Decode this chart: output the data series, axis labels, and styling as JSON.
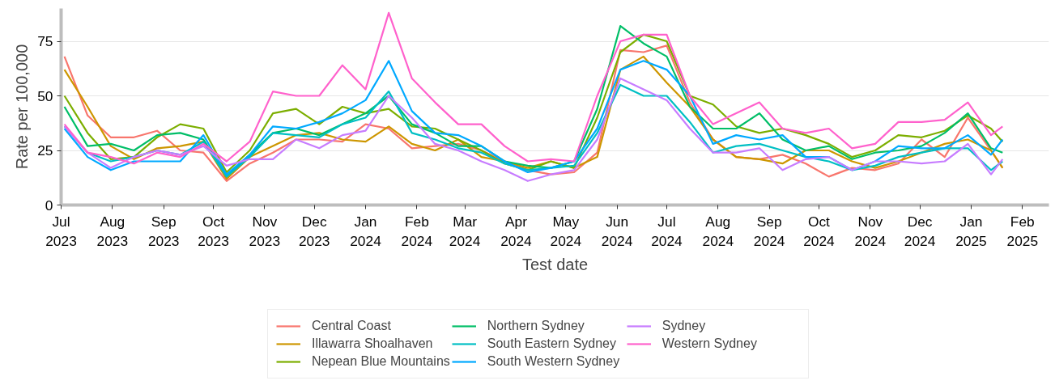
{
  "chart_data": {
    "type": "line",
    "xlabel": "Test date",
    "ylabel": "Rate per 100,000",
    "x": [
      "2023-07-03",
      "2023-07-17",
      "2023-07-31",
      "2023-08-14",
      "2023-08-28",
      "2023-09-11",
      "2023-09-25",
      "2023-10-09",
      "2023-10-23",
      "2023-11-06",
      "2023-11-20",
      "2023-12-04",
      "2023-12-18",
      "2024-01-01",
      "2024-01-15",
      "2024-01-29",
      "2024-02-12",
      "2024-02-26",
      "2024-03-11",
      "2024-03-25",
      "2024-04-08",
      "2024-04-22",
      "2024-05-06",
      "2024-05-20",
      "2024-06-03",
      "2024-06-17",
      "2024-07-01",
      "2024-07-15",
      "2024-07-29",
      "2024-08-12",
      "2024-08-26",
      "2024-09-09",
      "2024-09-23",
      "2024-10-07",
      "2024-10-21",
      "2024-11-04",
      "2024-11-18",
      "2024-12-02",
      "2024-12-16",
      "2024-12-30",
      "2025-01-13",
      "2025-01-20"
    ],
    "series": [
      {
        "name": "Central Coast",
        "color": "#f8766d",
        "values": [
          68,
          41,
          31,
          31,
          34,
          25,
          24,
          11,
          19,
          24,
          30,
          30,
          29,
          37,
          35,
          26,
          27,
          28,
          25,
          20,
          16,
          14,
          15,
          24,
          71,
          70,
          73,
          47,
          30,
          22,
          21,
          23,
          19,
          13,
          17,
          16,
          19,
          30,
          22,
          40,
          25,
          17
        ]
      },
      {
        "name": "Illawarra Shoalhaven",
        "color": "#cd9600",
        "values": [
          62,
          45,
          27,
          21,
          26,
          27,
          29,
          12,
          22,
          27,
          32,
          33,
          30,
          29,
          36,
          28,
          25,
          30,
          22,
          20,
          17,
          20,
          17,
          22,
          62,
          68,
          56,
          45,
          30,
          22,
          21,
          19,
          25,
          25,
          20,
          17,
          20,
          24,
          28,
          30,
          25,
          17
        ]
      },
      {
        "name": "Nepean Blue Mountains",
        "color": "#7cae00",
        "values": [
          50,
          33,
          21,
          22,
          31,
          37,
          35,
          15,
          25,
          42,
          44,
          37,
          45,
          42,
          44,
          36,
          35,
          30,
          25,
          19,
          16,
          20,
          17,
          40,
          70,
          78,
          75,
          50,
          46,
          36,
          33,
          35,
          32,
          28,
          22,
          25,
          32,
          31,
          34,
          41,
          35,
          29
        ]
      },
      {
        "name": "Northern Sydney",
        "color": "#00be67",
        "values": [
          45,
          27,
          28,
          25,
          32,
          33,
          30,
          13,
          23,
          33,
          35,
          32,
          37,
          42,
          50,
          37,
          33,
          27,
          27,
          20,
          18,
          17,
          20,
          44,
          82,
          74,
          68,
          45,
          35,
          35,
          42,
          30,
          25,
          27,
          21,
          24,
          25,
          27,
          33,
          42,
          26,
          24
        ]
      },
      {
        "name": "South Eastern Sydney",
        "color": "#00bfc4",
        "values": [
          36,
          24,
          20,
          22,
          25,
          23,
          29,
          13,
          22,
          33,
          32,
          31,
          37,
          40,
          52,
          33,
          30,
          26,
          24,
          19,
          16,
          17,
          18,
          33,
          55,
          50,
          50,
          38,
          24,
          27,
          28,
          25,
          22,
          20,
          16,
          18,
          22,
          24,
          26,
          26,
          16,
          20
        ]
      },
      {
        "name": "South Western Sydney",
        "color": "#00a9ff",
        "values": [
          35,
          22,
          16,
          20,
          20,
          20,
          32,
          14,
          23,
          36,
          35,
          38,
          42,
          48,
          66,
          43,
          33,
          32,
          27,
          20,
          15,
          17,
          20,
          35,
          62,
          66,
          62,
          50,
          28,
          32,
          30,
          32,
          22,
          22,
          16,
          20,
          27,
          26,
          26,
          32,
          23,
          30
        ]
      },
      {
        "name": "Sydney",
        "color": "#c77cff",
        "values": [
          36,
          24,
          17,
          22,
          25,
          23,
          27,
          18,
          21,
          21,
          30,
          26,
          32,
          34,
          50,
          40,
          28,
          25,
          20,
          16,
          11,
          14,
          16,
          30,
          58,
          53,
          48,
          35,
          24,
          24,
          26,
          16,
          21,
          22,
          16,
          20,
          20,
          19,
          20,
          28,
          14,
          21
        ]
      },
      {
        "name": "Western Sydney",
        "color": "#ff61cc",
        "values": [
          37,
          24,
          22,
          19,
          24,
          22,
          28,
          20,
          29,
          52,
          50,
          50,
          64,
          53,
          88,
          58,
          47,
          37,
          37,
          27,
          20,
          21,
          20,
          50,
          75,
          78,
          78,
          50,
          37,
          42,
          47,
          35,
          33,
          35,
          26,
          28,
          38,
          38,
          39,
          47,
          32,
          36
        ]
      }
    ],
    "xlim": [
      "2023-07-01",
      "2025-02-17"
    ],
    "xticks": [
      {
        "value": "2023-07-01",
        "label": "Jul\n2023"
      },
      {
        "value": "2023-08-01",
        "label": "Aug\n2023"
      },
      {
        "value": "2023-09-01",
        "label": "Sep\n2023"
      },
      {
        "value": "2023-10-01",
        "label": "Oct\n2023"
      },
      {
        "value": "2023-11-01",
        "label": "Nov\n2023"
      },
      {
        "value": "2023-12-01",
        "label": "Dec\n2023"
      },
      {
        "value": "2024-01-01",
        "label": "Jan\n2024"
      },
      {
        "value": "2024-02-01",
        "label": "Feb\n2024"
      },
      {
        "value": "2024-03-01",
        "label": "Mar\n2024"
      },
      {
        "value": "2024-04-01",
        "label": "Apr\n2024"
      },
      {
        "value": "2024-05-01",
        "label": "May\n2024"
      },
      {
        "value": "2024-06-01",
        "label": "Jun\n2024"
      },
      {
        "value": "2024-07-01",
        "label": "Jul\n2024"
      },
      {
        "value": "2024-08-01",
        "label": "Aug\n2024"
      },
      {
        "value": "2024-09-01",
        "label": "Sep\n2024"
      },
      {
        "value": "2024-10-01",
        "label": "Oct\n2024"
      },
      {
        "value": "2024-11-01",
        "label": "Nov\n2024"
      },
      {
        "value": "2024-12-01",
        "label": "Dec\n2024"
      },
      {
        "value": "2025-01-01",
        "label": "Jan\n2025"
      },
      {
        "value": "2025-02-01",
        "label": "Feb\n2025"
      }
    ],
    "ylim": [
      0,
      90
    ],
    "yticks": [
      0,
      25,
      50,
      75
    ],
    "grid": "y",
    "legend": "bottom"
  }
}
